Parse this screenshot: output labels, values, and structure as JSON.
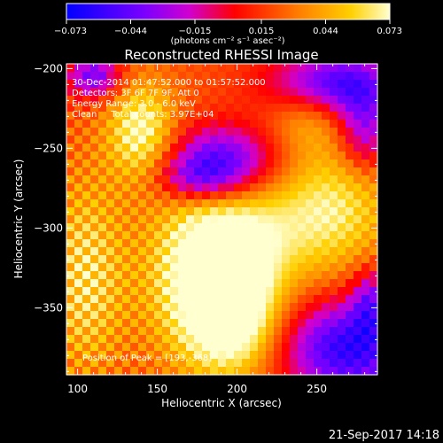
{
  "chart_data": {
    "type": "heatmap",
    "title": "Reconstructed RHESSI Image",
    "xlabel": "Heliocentric X (arcsec)",
    "ylabel": "Heliocentric Y (arcsec)",
    "xlim": [
      93,
      288
    ],
    "ylim": [
      -392,
      -197
    ],
    "x_ticks": [
      100,
      150,
      200,
      250
    ],
    "y_ticks": [
      -200,
      -250,
      -300,
      -350
    ],
    "colorbar": {
      "min": -0.073,
      "max": 0.073,
      "tick_labels": [
        "−0.073",
        "−0.044",
        "−0.015",
        "0.015",
        "0.044",
        "0.073"
      ],
      "tick_values": [
        -0.073,
        -0.044,
        -0.015,
        0.015,
        0.044,
        0.073
      ],
      "units_label": "(photons cm⁻² s⁻¹ asec⁻²)"
    },
    "annotations": [
      "30-Dec-2014 01:47:52.000 to 01:57:52.000",
      "Detectors: 3F 6F 7F 9F, Att 0",
      "Energy Range: 3.0 - 6.0 keV",
      "Clean     Total counts: 3.97E+04"
    ],
    "peak_label": "Position of Peak = [193,-368]",
    "peak": {
      "x": 193,
      "y": -368
    },
    "grid": false,
    "blobs": [
      {
        "x": 185,
        "y": -330,
        "sx": 26,
        "sy": 38,
        "amp": 0.085
      },
      {
        "x": 200,
        "y": -360,
        "sx": 18,
        "sy": 22,
        "amp": 0.035
      },
      {
        "x": 140,
        "y": -240,
        "sx": 15,
        "sy": 22,
        "amp": 0.055
      },
      {
        "x": 105,
        "y": -330,
        "sx": 18,
        "sy": 45,
        "amp": 0.04
      },
      {
        "x": 265,
        "y": -285,
        "sx": 25,
        "sy": 28,
        "amp": 0.035
      },
      {
        "x": 245,
        "y": -225,
        "sx": 18,
        "sy": 18,
        "amp": 0.03
      },
      {
        "x": 230,
        "y": -300,
        "sx": 30,
        "sy": 30,
        "amp": 0.025
      },
      {
        "x": 190,
        "y": -258,
        "sx": 25,
        "sy": 16,
        "amp": -0.075
      },
      {
        "x": 175,
        "y": -270,
        "sx": 18,
        "sy": 10,
        "amp": -0.035
      },
      {
        "x": 260,
        "y": -210,
        "sx": 28,
        "sy": 14,
        "amp": -0.08
      },
      {
        "x": 280,
        "y": -240,
        "sx": 12,
        "sy": 18,
        "amp": -0.05
      },
      {
        "x": 110,
        "y": -205,
        "sx": 12,
        "sy": 10,
        "amp": -0.06
      },
      {
        "x": 270,
        "y": -375,
        "sx": 30,
        "sy": 22,
        "amp": -0.08
      },
      {
        "x": 283,
        "y": -345,
        "sx": 8,
        "sy": 15,
        "amp": -0.04
      }
    ],
    "background": 0.02,
    "ripple": 0.015
  },
  "timestamp": "21-Sep-2017 14:18"
}
